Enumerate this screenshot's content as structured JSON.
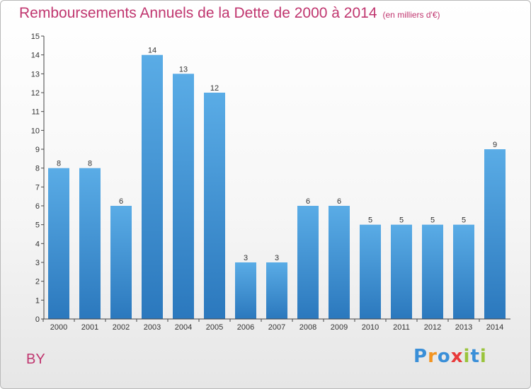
{
  "title": "Remboursements Annuels de la Dette de 2000 à 2014",
  "unit": "(en milliers d'€)",
  "commune": "BY",
  "logo": {
    "text": "Proxiti",
    "letters": [
      "P",
      "r",
      "o",
      "x",
      "i",
      "t",
      "i"
    ],
    "colors": [
      "#3a8fd8",
      "#f29420",
      "#3a8fd8",
      "#e83a3a",
      "#9ac43c",
      "#3a8fd8",
      "#9ac43c"
    ]
  },
  "chart_data": {
    "type": "bar",
    "title": "Remboursements Annuels de la Dette de 2000 à 2014",
    "subtitle": "(en milliers d'€)",
    "categories": [
      "2000",
      "2001",
      "2002",
      "2003",
      "2004",
      "2005",
      "2006",
      "2007",
      "2008",
      "2009",
      "2010",
      "2011",
      "2012",
      "2013",
      "2014"
    ],
    "values": [
      8,
      8,
      6,
      14,
      13,
      12,
      3,
      3,
      6,
      6,
      5,
      5,
      5,
      5,
      9
    ],
    "ylim": [
      0,
      15
    ],
    "yticks": [
      0,
      1,
      2,
      3,
      4,
      5,
      6,
      7,
      8,
      9,
      10,
      11,
      12,
      13,
      14,
      15
    ],
    "grid": false,
    "data_labels": true,
    "bar_color_top": "#5aace6",
    "bar_color_bottom": "#2b78bd"
  }
}
